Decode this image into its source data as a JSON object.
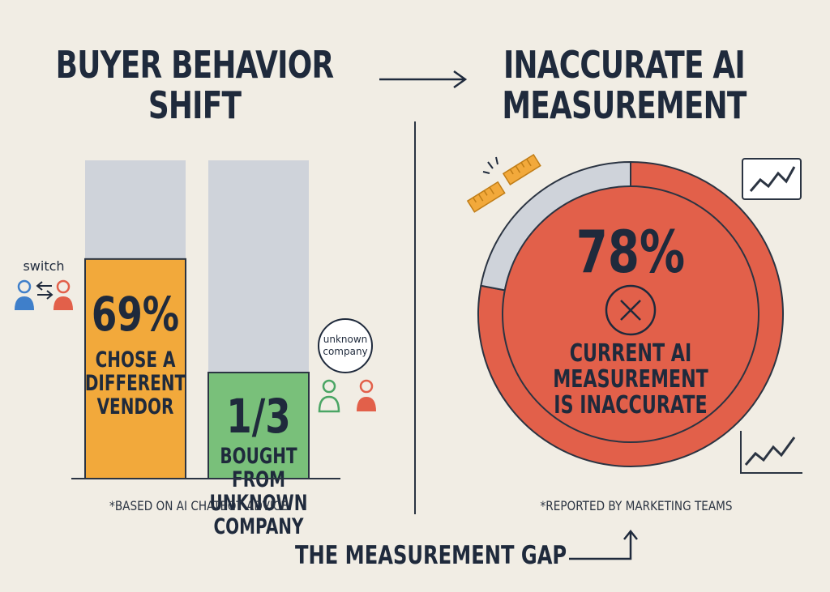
{
  "left_panel": {
    "title_line1": "BUYER BEHAVIOR",
    "title_line2": "SHIFT",
    "switch_label": "switch",
    "unknown_badge_line1": "unknown",
    "unknown_badge_line2": "company",
    "footnote": "*BASED ON AI CHATBOT ADVICE"
  },
  "right_panel": {
    "title_line1": "INACCURATE AI",
    "title_line2": "MEASUREMENT",
    "footnote": "*REPORTED BY MARKETING TEAMS"
  },
  "footer": {
    "title": "THE MEASUREMENT GAP"
  },
  "colors": {
    "orange": "#f2a93b",
    "green": "#79c07a",
    "red": "#e2604a",
    "gray": "#cfd3da",
    "navy": "#1f2a3c",
    "blue": "#3f7fca"
  },
  "icons": [
    "arrow-right-icon",
    "swap-arrows-icon",
    "person-icon",
    "broken-ruler-icon",
    "trend-chart-icon",
    "close-circle-icon",
    "arrow-up-icon"
  ],
  "chart_data": [
    {
      "type": "bar",
      "categories": [
        "CHOSE A DIFFERENT VENDOR",
        "BOUGHT FROM UNKNOWN COMPANY"
      ],
      "values": [
        0.69,
        0.3333
      ],
      "value_labels": [
        "69%",
        "1/3"
      ],
      "label_lines": [
        [
          "CHOSE A",
          "DIFFERENT",
          "VENDOR"
        ],
        [
          "BOUGHT",
          "FROM",
          "UNKNOWN",
          "COMPANY"
        ]
      ],
      "ylim": [
        0,
        1
      ],
      "colors": [
        "#f2a93b",
        "#79c07a"
      ],
      "remainder_color": "#cfd3da"
    },
    {
      "type": "pie",
      "values": [
        0.78,
        0.22
      ],
      "value_label": "78%",
      "label_lines": [
        "CURRENT AI",
        "MEASUREMENT",
        "IS INACCURATE"
      ],
      "colors": [
        "#e2604a",
        "#cfd3da"
      ]
    }
  ]
}
